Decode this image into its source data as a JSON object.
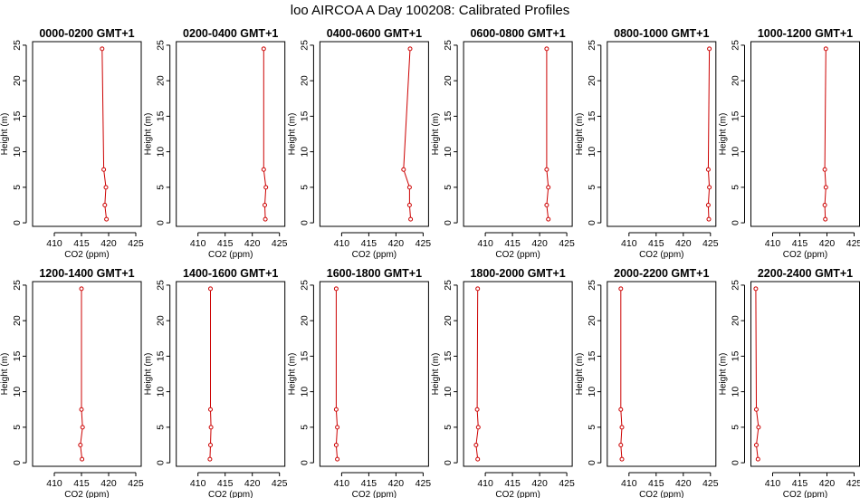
{
  "title": "loo AIRCOA A  Day 100208: Calibrated Profiles",
  "colors": {
    "series": "#cc0000",
    "axes": "#000000",
    "background": "#ffffff"
  },
  "chart_data": {
    "type": "line",
    "markers": "open-circle",
    "xlabel": "CO2 (ppm)",
    "ylabel": "Height (m)",
    "xlim": [
      406,
      426
    ],
    "ylim": [
      -0.5,
      25.5
    ],
    "xticks": [
      410,
      415,
      420,
      425
    ],
    "yticks": [
      0,
      5,
      10,
      15,
      20,
      25
    ],
    "heights": [
      0.5,
      2.5,
      5,
      7.5,
      24.5
    ],
    "panels": [
      {
        "title": "0000-0200 GMT+1",
        "x": [
          419.6,
          419.3,
          419.5,
          419.1,
          418.8
        ]
      },
      {
        "title": "0200-0400 GMT+1",
        "x": [
          422.4,
          422.3,
          422.5,
          422.1,
          422.1
        ]
      },
      {
        "title": "0400-0600 GMT+1",
        "x": [
          422.7,
          422.5,
          422.5,
          421.4,
          422.6
        ]
      },
      {
        "title": "0600-0800 GMT+1",
        "x": [
          421.6,
          421.3,
          421.6,
          421.3,
          421.3
        ]
      },
      {
        "title": "0800-1000 GMT+1",
        "x": [
          424.7,
          424.6,
          424.8,
          424.6,
          424.8
        ]
      },
      {
        "title": "1000-1200 GMT+1",
        "x": [
          419.7,
          419.6,
          419.8,
          419.6,
          419.8
        ]
      },
      {
        "title": "1200-1400 GMT+1",
        "x": [
          415.1,
          414.8,
          415.2,
          415.0,
          415.0
        ]
      },
      {
        "title": "1400-1600 GMT+1",
        "x": [
          412.2,
          412.3,
          412.4,
          412.3,
          412.3
        ]
      },
      {
        "title": "1600-1800 GMT+1",
        "x": [
          409.2,
          409.0,
          409.2,
          409.0,
          409.0
        ]
      },
      {
        "title": "1800-2000 GMT+1",
        "x": [
          408.6,
          408.3,
          408.7,
          408.5,
          408.6
        ]
      },
      {
        "title": "2000-2200 GMT+1",
        "x": [
          408.7,
          408.5,
          408.7,
          408.5,
          408.5
        ]
      },
      {
        "title": "2200-2400 GMT+1",
        "x": [
          407.3,
          407.0,
          407.4,
          407.0,
          406.9
        ]
      }
    ]
  }
}
